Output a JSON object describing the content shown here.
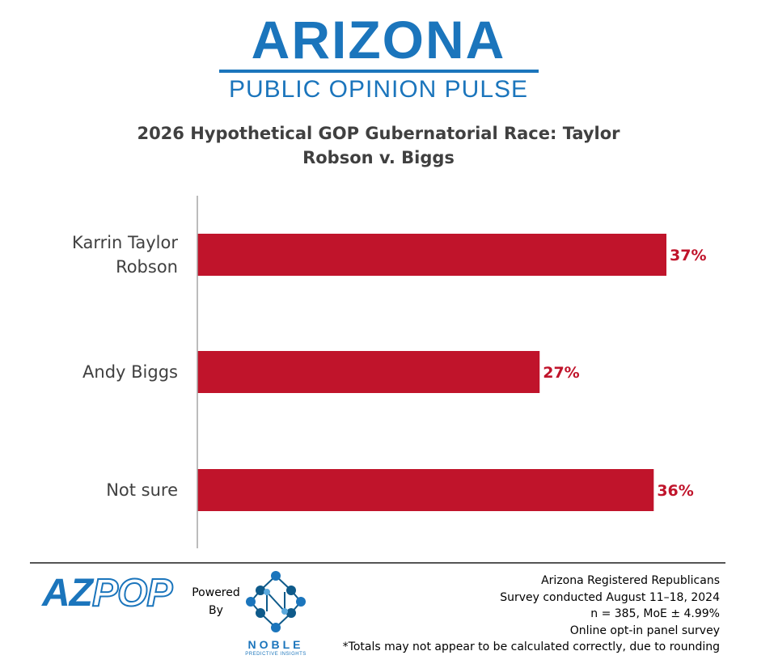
{
  "header": {
    "logo_main": "ARIZONA",
    "logo_sub": "PUBLIC OPINION PULSE"
  },
  "colors": {
    "brand_blue": "#1b75bc",
    "bar_red": "#c0142b",
    "axis_gray": "#a6a6a6",
    "label_gray": "#404040"
  },
  "chart_data": {
    "type": "bar",
    "orientation": "horizontal",
    "title_lines": [
      "2026 Hypothetical GOP Gubernatorial Race: Taylor",
      "Robson v. Biggs"
    ],
    "categories": [
      [
        "Karrin  Taylor",
        "Robson"
      ],
      [
        "Andy Biggs"
      ],
      [
        "Not sure"
      ]
    ],
    "values": [
      37,
      27,
      36
    ],
    "value_labels": [
      "37%",
      "27%",
      "36%"
    ],
    "xlim": [
      0,
      37
    ],
    "grid": false,
    "legend": "none"
  },
  "footer": {
    "logo_az": "AZ",
    "logo_pop": "POP",
    "powered_by": [
      "Powered",
      "By"
    ],
    "noble_word": "NOBLE",
    "noble_sub": "PREDICTIVE INSIGHTS",
    "notes": [
      "Arizona Registered Republicans",
      "Survey conducted August 11–18, 2024",
      "n = 385, MoE ± 4.99%",
      "Online opt-in panel survey",
      "*Totals may not appear to be calculated correctly, due to rounding"
    ]
  }
}
